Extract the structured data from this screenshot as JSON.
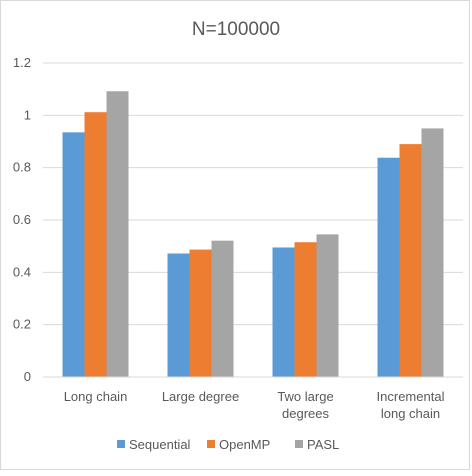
{
  "chart_data": {
    "type": "bar",
    "title": "N=100000",
    "xlabel": "",
    "ylabel": "",
    "ylim": [
      0,
      1.2
    ],
    "yticks": [
      "0",
      "0.2",
      "0.4",
      "0.6",
      "0.8",
      "1",
      "1.2"
    ],
    "grid": true,
    "legend_position": "bottom",
    "categories": [
      [
        "Long chain"
      ],
      [
        "Large degree"
      ],
      [
        "Two large",
        "degrees"
      ],
      [
        "Incremental",
        "long chain"
      ]
    ],
    "series": [
      {
        "name": "Sequential",
        "color": "#5b9bd5",
        "values": [
          0.935,
          0.472,
          0.495,
          0.838
        ]
      },
      {
        "name": "OpenMP",
        "color": "#ed7d31",
        "values": [
          1.012,
          0.487,
          0.515,
          0.89
        ]
      },
      {
        "name": "PASL",
        "color": "#a5a5a5",
        "values": [
          1.092,
          0.521,
          0.545,
          0.95
        ]
      }
    ]
  }
}
